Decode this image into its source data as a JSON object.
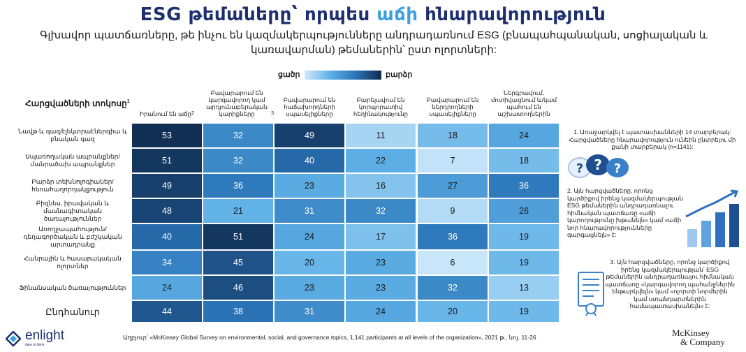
{
  "title": {
    "part1": "ESG թեմաները՝ որպես ",
    "accent": "աճի",
    "part2": " հնարավորություն"
  },
  "subtitle": "Գլխավոր պատճառները, թե ինչու են կազմակերպությունները անդրադառնում ESG (բնապահպանական, սոցիալական և կառավարման) թեմաներին՝ ըստ ոլորտների:",
  "legend": {
    "low": "ցածր",
    "high": "բարձր"
  },
  "chart_data": {
    "type": "heatmap",
    "row_header": "Հարցվածների տոկոսը",
    "row_header_sup": "1",
    "columns": [
      {
        "label": "Իրանում են աճը",
        "sup": "2"
      },
      {
        "label": "Բավարարում են կարգավորող կամ արդյունաբերական կարիքները",
        "sup": "3"
      },
      {
        "label": "Բավարարում են հաճախորդների սպասելիքները",
        "sup": ""
      },
      {
        "label": "Բարելավում են կորպորատիվ հեղինակությունը",
        "sup": ""
      },
      {
        "label": "Բավարարում են ներդրողների սպասելիքները",
        "sup": ""
      },
      {
        "label": "Ներգրավում, մոտիվացնում և/կամ պահում են աշխատողներին",
        "sup": ""
      }
    ],
    "rows": [
      {
        "label": "Նավթ և գազ/էլեկտրաէներգիա և բնական գազ",
        "values": [
          53,
          32,
          49,
          11,
          18,
          24
        ]
      },
      {
        "label": "Սպառողական ապրանքներ/ մանրածախ ապրանքներ",
        "values": [
          51,
          32,
          40,
          22,
          7,
          18
        ]
      },
      {
        "label": "Բարձր տեխնոլոգիաներ/ հեռահաղորդակցություն",
        "values": [
          49,
          36,
          23,
          16,
          27,
          36
        ]
      },
      {
        "label": "Բիզնես, իրավական և մասնագիտական ծառայություններ",
        "values": [
          48,
          21,
          31,
          32,
          9,
          26
        ]
      },
      {
        "label": "Առողջապահություն/ դեղագործական և բժշկական արտադրանք",
        "values": [
          40,
          51,
          24,
          17,
          36,
          19
        ]
      },
      {
        "label": "Հանրային և հասարակական ոլորտներ",
        "values": [
          34,
          45,
          20,
          23,
          6,
          19
        ]
      },
      {
        "label": "Ֆինանսական ծառայություններ",
        "values": [
          24,
          46,
          23,
          23,
          32,
          13
        ]
      }
    ],
    "total": {
      "label": "Ընդհանուր",
      "values": [
        44,
        38,
        31,
        24,
        20,
        19
      ]
    },
    "color_scale": [
      "#cfe9fa",
      "#5fb1e7",
      "#2a73b8",
      "#0f2a4c"
    ]
  },
  "notes": {
    "n1": "1. Առաջարկվել է պատասխանների 14 տարբերակ: Հարցվածները հնարավորություն ունեին ընտրելու մի քանի տարբերակ (n=1141):",
    "n2": "2. Այն հարցվածները, որոնց կարծիքով իրենց կազմակերպության ESG թեմաներին անդրադառնալու հիմնական պատճառը «աճի կարողությունը խթանելն» կամ «աճի նոր հնարավորությունները զարգացնելն» է:",
    "n3": "3. Այն հարցվածները, որոնց կարծիքով իրենց կազմակերպության՝ ESG թեմաներին անդրադառնալու հիմնական պատճառը «կարգավորող պահանջներին ենթարկվելն» կամ «ոլորտի նորմերին կամ ստանդարտներին համապատասխանելն» է:"
  },
  "source": "Աղբյուր՝ «McKinsey Global Survey on environmental, social, and governance topics, 1,141 participants at all levels of the organization», 2021 թ., նոյ. 11-26",
  "logo": {
    "name": "enlight",
    "tagline": "dare to think"
  },
  "brand": {
    "line1": "McKinsey",
    "line2": "& Company"
  }
}
